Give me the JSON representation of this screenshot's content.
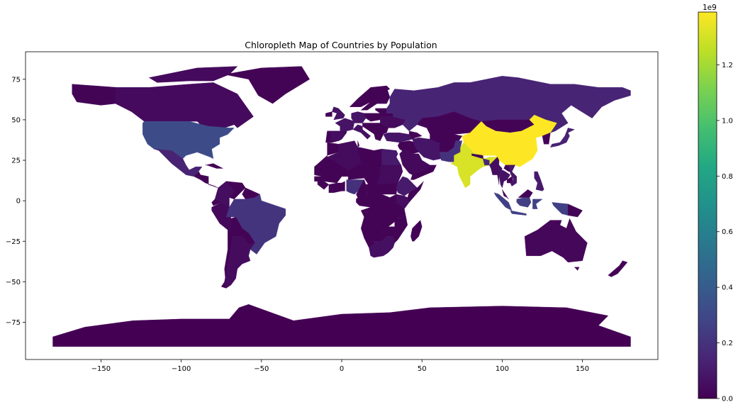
{
  "chart_data": {
    "type": "choropleth",
    "title": "Chloropleth Map of Countries by Population",
    "xlabel": "",
    "ylabel": "",
    "xlim": [
      -197,
      197
    ],
    "ylim": [
      -98,
      92
    ],
    "x_ticks": [
      -150,
      -100,
      -50,
      0,
      50,
      100,
      150
    ],
    "y_ticks": [
      75,
      50,
      25,
      0,
      -25,
      -50,
      -75
    ],
    "grid": false,
    "colormap": "viridis",
    "colorbar": {
      "multiplier_label": "1e9",
      "range": [
        0,
        1.39
      ],
      "ticks": [
        0.0,
        0.2,
        0.4,
        0.6,
        0.8,
        1.0,
        1.2
      ],
      "tick_labels": [
        "0.0",
        "0.2",
        "0.4",
        "0.6",
        "0.8",
        "1.0",
        "1.2"
      ]
    },
    "regions": [
      {
        "name": "China",
        "value": 1.39
      },
      {
        "name": "India",
        "value": 1.31
      },
      {
        "name": "United States",
        "value": 0.32
      },
      {
        "name": "Indonesia",
        "value": 0.26
      },
      {
        "name": "Brazil",
        "value": 0.21
      },
      {
        "name": "Pakistan",
        "value": 0.2
      },
      {
        "name": "Nigeria",
        "value": 0.19
      },
      {
        "name": "Bangladesh",
        "value": 0.16
      },
      {
        "name": "Russia",
        "value": 0.14
      },
      {
        "name": "Mexico",
        "value": 0.13
      },
      {
        "name": "Japan",
        "value": 0.13
      },
      {
        "name": "Ethiopia",
        "value": 0.1
      },
      {
        "name": "Philippines",
        "value": 0.1
      },
      {
        "name": "Egypt",
        "value": 0.1
      },
      {
        "name": "Vietnam",
        "value": 0.09
      },
      {
        "name": "Iran",
        "value": 0.08
      },
      {
        "name": "Turkey",
        "value": 0.08
      },
      {
        "name": "Germany",
        "value": 0.08
      },
      {
        "name": "Thailand",
        "value": 0.07
      },
      {
        "name": "France",
        "value": 0.07
      },
      {
        "name": "United Kingdom",
        "value": 0.07
      },
      {
        "name": "Italy",
        "value": 0.06
      },
      {
        "name": "South Africa",
        "value": 0.06
      },
      {
        "name": "Myanmar",
        "value": 0.05
      },
      {
        "name": "Kenya",
        "value": 0.05
      },
      {
        "name": "Colombia",
        "value": 0.05
      },
      {
        "name": "Spain",
        "value": 0.05
      },
      {
        "name": "Argentina",
        "value": 0.044
      },
      {
        "name": "Algeria",
        "value": 0.042
      },
      {
        "name": "Sudan",
        "value": 0.04
      },
      {
        "name": "Ukraine",
        "value": 0.04
      },
      {
        "name": "Canada",
        "value": 0.037
      },
      {
        "name": "Peru",
        "value": 0.032
      },
      {
        "name": "Saudi Arabia",
        "value": 0.033
      },
      {
        "name": "Australia",
        "value": 0.025
      },
      {
        "name": "Other countries",
        "value": 0.01
      },
      {
        "name": "Antarctica",
        "value": 0.0
      }
    ]
  }
}
